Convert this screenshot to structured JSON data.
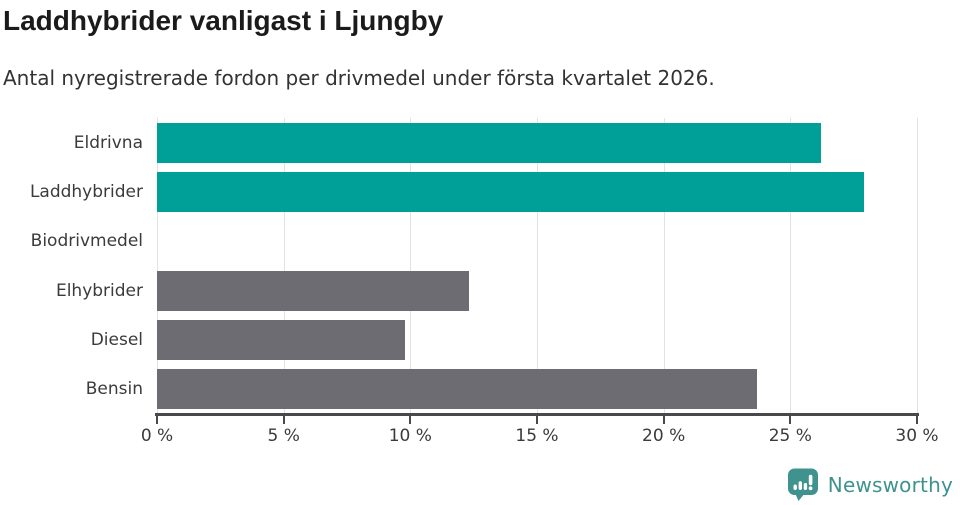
{
  "header": {
    "title": "Laddhybrider vanligast i Ljungby",
    "subtitle": "Antal nyregistrerade fordon per drivmedel under första kvartalet 2026."
  },
  "chart_data": {
    "type": "bar",
    "orientation": "horizontal",
    "title": "Laddhybrider vanligast i Ljungby",
    "subtitle": "Antal nyregistrerade fordon per drivmedel under första kvartalet 2026.",
    "categories": [
      "Eldrivna",
      "Laddhybrider",
      "Biodrivmedel",
      "Elhybrider",
      "Diesel",
      "Bensin"
    ],
    "values": [
      26.2,
      27.9,
      0,
      12.3,
      9.8,
      23.7
    ],
    "unit": "%",
    "xlabel": "",
    "ylabel": "",
    "xlim": [
      0,
      30
    ],
    "x_ticks": [
      {
        "value": 0,
        "label": "0 %"
      },
      {
        "value": 5,
        "label": "5 %"
      },
      {
        "value": 10,
        "label": "10 %"
      },
      {
        "value": 15,
        "label": "15 %"
      },
      {
        "value": 20,
        "label": "20 %"
      },
      {
        "value": 25,
        "label": "25 %"
      },
      {
        "value": 30,
        "label": "30 %"
      }
    ],
    "grid": true,
    "legend": false,
    "bar_colors": [
      "#00a098",
      "#00a098",
      "#6c6c72",
      "#6c6c72",
      "#6c6c72",
      "#6c6c72"
    ]
  },
  "colors": {
    "accent_teal": "#00a098",
    "bar_gray": "#6c6c72",
    "logo_teal": "#3f928e",
    "grid_line": "#e2e2e2",
    "axis_line": "#49494b",
    "title_text": "#1b1b1b",
    "body_text": "#333333",
    "axis_text": "#3b3b3b"
  },
  "footer": {
    "brand": "Newsworthy",
    "logo_icon": "newsworthy-speech-bubble-bar-chart-icon"
  }
}
